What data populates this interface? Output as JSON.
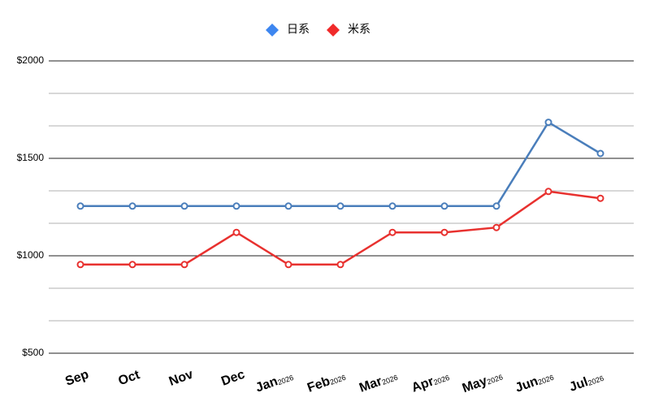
{
  "chart_data": {
    "type": "line",
    "categories": [
      "Sep",
      "Oct",
      "Nov",
      "Dec",
      "Jan",
      "Feb",
      "Mar",
      "Apr",
      "May",
      "Jun",
      "Jul"
    ],
    "category_years": [
      null,
      null,
      null,
      null,
      "2026",
      "2026",
      "2026",
      "2026",
      "2026",
      "2026",
      "2026"
    ],
    "series": [
      {
        "name": "日系",
        "color": "#4a7ebb",
        "marker_color": "#3d86f0",
        "values": [
          1255,
          1255,
          1255,
          1255,
          1255,
          1255,
          1255,
          1255,
          1255,
          1685,
          1525
        ]
      },
      {
        "name": "米系",
        "color": "#e8312f",
        "marker_color": "#f02a2a",
        "values": [
          955,
          955,
          955,
          1120,
          955,
          955,
          1120,
          1120,
          1145,
          1330,
          1295
        ]
      }
    ],
    "ylim": [
      500,
      2000
    ],
    "yticks": [
      {
        "value": 500,
        "label": "$500"
      },
      {
        "value": 1000,
        "label": "$1000"
      },
      {
        "value": 1500,
        "label": "$1500"
      },
      {
        "value": 2000,
        "label": "$2000"
      }
    ],
    "yminor": [
      666.67,
      833.33,
      1166.67,
      1333.33,
      1666.67,
      1833.33
    ],
    "grid": true,
    "legend": "top"
  }
}
